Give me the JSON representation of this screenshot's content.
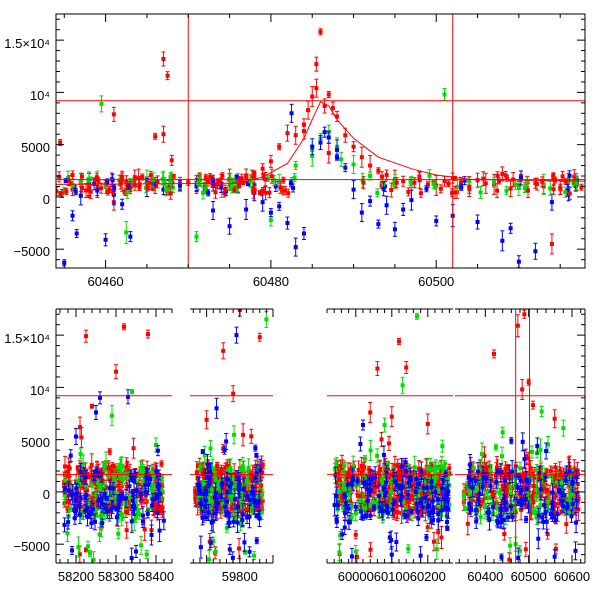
{
  "chart_data": [
    {
      "type": "scatter",
      "panel": "top",
      "title": "",
      "xlabel": "",
      "ylabel": "",
      "xlim": [
        60454,
        60518
      ],
      "ylim": [
        -6800,
        17500
      ],
      "xticks": [
        60460,
        60480,
        60500
      ],
      "xtick_labels": [
        "60460",
        "60480",
        "60500"
      ],
      "yticks": [
        -5000,
        0,
        5000,
        10000,
        15000
      ],
      "ytick_labels": [
        "−5000",
        "0",
        "5000",
        "10⁴",
        "1.5×10⁴"
      ],
      "hlines": [
        9200,
        1650
      ],
      "vlines": [
        60470,
        60502
      ],
      "model_curve": {
        "name": "model",
        "color": "#ff0000",
        "x": [
          60454,
          60476,
          60479,
          60482,
          60484,
          60485,
          60486,
          60487,
          60488,
          60490,
          60493,
          60497,
          60500,
          60504,
          60518
        ],
        "y": [
          1200,
          1300,
          1900,
          3200,
          5600,
          7400,
          9100,
          8700,
          7400,
          5600,
          3800,
          2700,
          2100,
          1700,
          1500
        ]
      },
      "series": [
        {
          "name": "red",
          "color": "#ff0000",
          "x": [
            60454.5,
            60456,
            60457,
            60458,
            60459,
            60460,
            60461,
            60462,
            60463,
            60464,
            60465,
            60466,
            60467,
            60467.5,
            60468,
            60469,
            60470,
            60471,
            60472,
            60473,
            60474,
            60475,
            60476,
            60477,
            60478,
            60479,
            60480,
            60481,
            60482,
            60483,
            60484,
            60484.5,
            60485,
            60485.5,
            60486,
            60486.5,
            60487,
            60487.5,
            60488,
            60489,
            60490,
            60491,
            60492,
            60493,
            60494,
            60495,
            60496,
            60497,
            60498,
            60499,
            60500,
            60501,
            60502,
            60503,
            60504,
            60505,
            60506,
            60507,
            60508,
            60509,
            60510,
            60511,
            60512,
            60513,
            60514,
            60515,
            60516,
            60517,
            60467,
            60461,
            60485.5,
            60484,
            60487,
            60466,
            60456
          ],
          "y": [
            5200,
            2100,
            1400,
            900,
            800,
            1200,
            7900,
            1500,
            1000,
            1800,
            1400,
            1100,
            13200,
            11600,
            3500,
            1300,
            1400,
            1200,
            1000,
            1500,
            1300,
            1700,
            1400,
            2000,
            2200,
            2700,
            3400,
            4800,
            6100,
            5900,
            6900,
            8300,
            9600,
            10400,
            15800,
            8700,
            9800,
            8500,
            7700,
            5900,
            4800,
            3800,
            3000,
            2500,
            2100,
            1700,
            1500,
            1300,
            1600,
            1200,
            1100,
            1500,
            1800,
            1400,
            1000,
            1600,
            1300,
            1200,
            2200,
            800,
            1100,
            1400,
            1300,
            1000,
            -4500,
            900,
            1500,
            1200,
            6000,
            -500,
            12700,
            6300,
            4200,
            5800,
            700
          ]
        },
        {
          "name": "green",
          "color": "#00dd00",
          "x": [
            60455,
            60457,
            60459,
            60460,
            60462,
            60463,
            60465,
            60467,
            60469,
            60472,
            60474,
            60476,
            60478,
            60481,
            60483,
            60485,
            60486,
            60487,
            60488,
            60490,
            60492,
            60495,
            60497,
            60501,
            60504,
            60507,
            60510,
            60513,
            60516,
            60459.5,
            60462.5,
            60471,
            60480,
            60485,
            60488.5
          ],
          "y": [
            600,
            1300,
            1800,
            1000,
            1500,
            1200,
            1800,
            1600,
            800,
            1100,
            900,
            1300,
            1200,
            1400,
            3000,
            4500,
            5600,
            6200,
            4800,
            3100,
            2000,
            1600,
            1300,
            9800,
            1500,
            1400,
            900,
            1200,
            1600,
            8900,
            -3400,
            -3800,
            -2200,
            3900,
            3600
          ]
        },
        {
          "name": "blue",
          "color": "#0000ff",
          "x": [
            60455,
            60456,
            60456.5,
            60457,
            60458,
            60459,
            60460,
            60461,
            60462,
            60463,
            60465,
            60467,
            60469,
            60471,
            60472,
            60473,
            60474,
            60475,
            60476,
            60477,
            60478,
            60479,
            60480,
            60481,
            60482,
            60483,
            60484,
            60485,
            60486,
            60486.5,
            60487,
            60488,
            60489,
            60490,
            60491,
            60492,
            60493,
            60494,
            60495,
            60496,
            60497,
            60500,
            60502,
            60505,
            60508,
            60509,
            60510,
            60512,
            60514,
            60516,
            60517,
            60482.5,
            60488
          ],
          "y": [
            -6300,
            -1800,
            -3500,
            100,
            1200,
            600,
            -4100,
            200,
            -700,
            -3800,
            900,
            700,
            1100,
            1000,
            700,
            -1300,
            900,
            -2800,
            1200,
            -1200,
            400,
            -500,
            -1500,
            -900,
            -2500,
            -4800,
            -3500,
            4800,
            5200,
            6200,
            5700,
            4500,
            2800,
            700,
            -1500,
            -400,
            -2600,
            -800,
            -3100,
            -1200,
            -300,
            -2300,
            -1800,
            -2400,
            -4200,
            -3000,
            -6200,
            -5200,
            -500,
            300,
            1600,
            8000,
            3800
          ]
        }
      ]
    },
    {
      "type": "scatter",
      "panel": "bottom",
      "title": "",
      "xlabel": "",
      "ylabel": "",
      "broken_axis": true,
      "segments": [
        {
          "xlim": [
            58150,
            58440
          ],
          "xticks": [
            58200,
            58300,
            58400
          ],
          "xtick_labels": [
            "58200",
            "58300",
            "58400"
          ]
        },
        {
          "xlim": [
            59650,
            59900
          ],
          "xticks": [
            59800
          ],
          "xtick_labels": [
            "59800"
          ]
        },
        {
          "xlim": [
            59920,
            60270
          ],
          "xticks": [
            60000,
            60100,
            60200
          ],
          "xtick_labels": [
            "60000",
            "60100",
            "60200"
          ]
        },
        {
          "xlim": [
            60330,
            60630
          ],
          "xticks": [
            60400,
            60500,
            60600
          ],
          "xtick_labels": [
            "60400",
            "60500",
            "60600"
          ]
        }
      ],
      "ylim": [
        -6800,
        17500
      ],
      "yticks": [
        -5000,
        0,
        5000,
        10000,
        15000
      ],
      "ytick_labels": [
        "−5000",
        "0",
        "5000",
        "10⁴",
        "1.5×10⁴"
      ],
      "hlines": [
        9200,
        1650
      ],
      "vlines": [
        60470,
        60502
      ],
      "series": [
        {
          "name": "red",
          "color": "#ff0000",
          "x_range": [
            [
              58170,
              58420
            ],
            [
              59665,
              59870
            ],
            [
              59940,
              60260
            ],
            [
              60350,
              60615
            ]
          ],
          "y_core": [
            -2000,
            2500
          ],
          "outliers": [
            [
              58225,
              14900
            ],
            [
              58300,
              11500
            ],
            [
              58320,
              15800
            ],
            [
              58210,
              6200
            ],
            [
              58380,
              15100
            ],
            [
              58240,
              8200
            ],
            [
              59700,
              6900
            ],
            [
              59750,
              13500
            ],
            [
              59800,
              17400
            ],
            [
              59860,
              14800
            ],
            [
              59780,
              9400
            ],
            [
              60060,
              11800
            ],
            [
              60120,
              14400
            ],
            [
              60140,
              11900
            ],
            [
              60200,
              6500
            ],
            [
              60040,
              7600
            ],
            [
              60100,
              7200
            ],
            [
              60420,
              13200
            ],
            [
              60475,
              15900
            ],
            [
              60490,
              17000
            ],
            [
              60500,
              10500
            ],
            [
              60560,
              7000
            ],
            [
              60510,
              8300
            ],
            [
              60485,
              9800
            ]
          ]
        },
        {
          "name": "green",
          "color": "#00dd00",
          "x_range": [
            [
              58170,
              58420
            ],
            [
              59665,
              59870
            ],
            [
              59940,
              60260
            ],
            [
              60350,
              60615
            ]
          ],
          "y_core": [
            -2500,
            2500
          ],
          "outliers": [
            [
              58340,
              9600
            ],
            [
              58290,
              7300
            ],
            [
              59880,
              16500
            ],
            [
              60080,
              6400
            ],
            [
              60170,
              16800
            ],
            [
              60130,
              10200
            ],
            [
              60440,
              5700
            ],
            [
              60530,
              7700
            ],
            [
              60580,
              6100
            ],
            [
              58230,
              -5200
            ],
            [
              59720,
              -4700
            ],
            [
              60000,
              -5700
            ],
            [
              60470,
              -5000
            ]
          ]
        },
        {
          "name": "blue",
          "color": "#0000ff",
          "x_range": [
            [
              58170,
              58420
            ],
            [
              59665,
              59870
            ],
            [
              59940,
              60260
            ],
            [
              60350,
              60615
            ]
          ],
          "y_core": [
            -3000,
            2000
          ],
          "outliers": [
            [
              58200,
              5300
            ],
            [
              58260,
              9000
            ],
            [
              58330,
              9100
            ],
            [
              58250,
              7600
            ],
            [
              59730,
              8000
            ],
            [
              59790,
              15000
            ],
            [
              59850,
              3500
            ],
            [
              60020,
              6400
            ],
            [
              60100,
              -6000
            ],
            [
              60460,
              4900
            ],
            [
              60520,
              4400
            ],
            [
              58350,
              -5700
            ],
            [
              59770,
              -5500
            ],
            [
              60180,
              -6100
            ],
            [
              60560,
              -6200
            ]
          ]
        }
      ]
    }
  ]
}
